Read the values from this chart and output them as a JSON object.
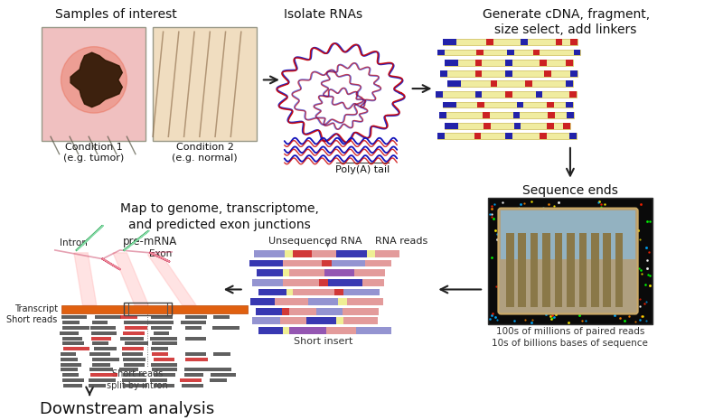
{
  "bg_color": "#ffffff",
  "panel_labels": {
    "samples_title": "Samples of interest",
    "isolate_title": "Isolate RNAs",
    "generate_title": "Generate cDNA, fragment,\nsize select, add linkers",
    "sequence_title": "Sequence ends",
    "map_title": "Map to genome, transcriptome,\nand predicted exon junctions",
    "downstream_title": "Downstream analysis"
  },
  "sample_labels": {
    "cond1": "Condition 1\n(e.g. tumor)",
    "cond2": "Condition 2\n(e.g. normal)",
    "polyA": "Poly(A) tail",
    "unsequenced": "Unsequenced RNA",
    "rna_reads": "RNA reads",
    "short_insert": "Short insert",
    "intron": "Intron",
    "pre_mrna": "pre-mRNA",
    "exon": "Exon",
    "transcript": "Transcript",
    "short_reads": "Short reads",
    "split_reads": "Short reads\nsplit by intron",
    "paired_reads": "100s of millions of paired reads\n10s of billions bases of sequence"
  },
  "colors": {
    "yellow_bar": "#f0eca0",
    "blue_block": "#2222aa",
    "red_block": "#cc2222",
    "pink_block": "#e8a0a0",
    "purple_block": "#8844aa",
    "light_blue_block": "#9999cc",
    "orange_transcript": "#e06010",
    "rna_red": "#cc0000",
    "rna_blue": "#1111bb",
    "rna_pink": "#ffaaaa",
    "tumor_bg": "#f0c0c0",
    "tumor_glow": "#e85030",
    "normal_bg": "#f0ddc0",
    "box_border": "#999988",
    "green_rna": "#44aa66",
    "pink_rna": "#cc4466",
    "seq_bg": "#111111",
    "chip_color": "#8B7040",
    "chip_lane": "#aa9055"
  }
}
